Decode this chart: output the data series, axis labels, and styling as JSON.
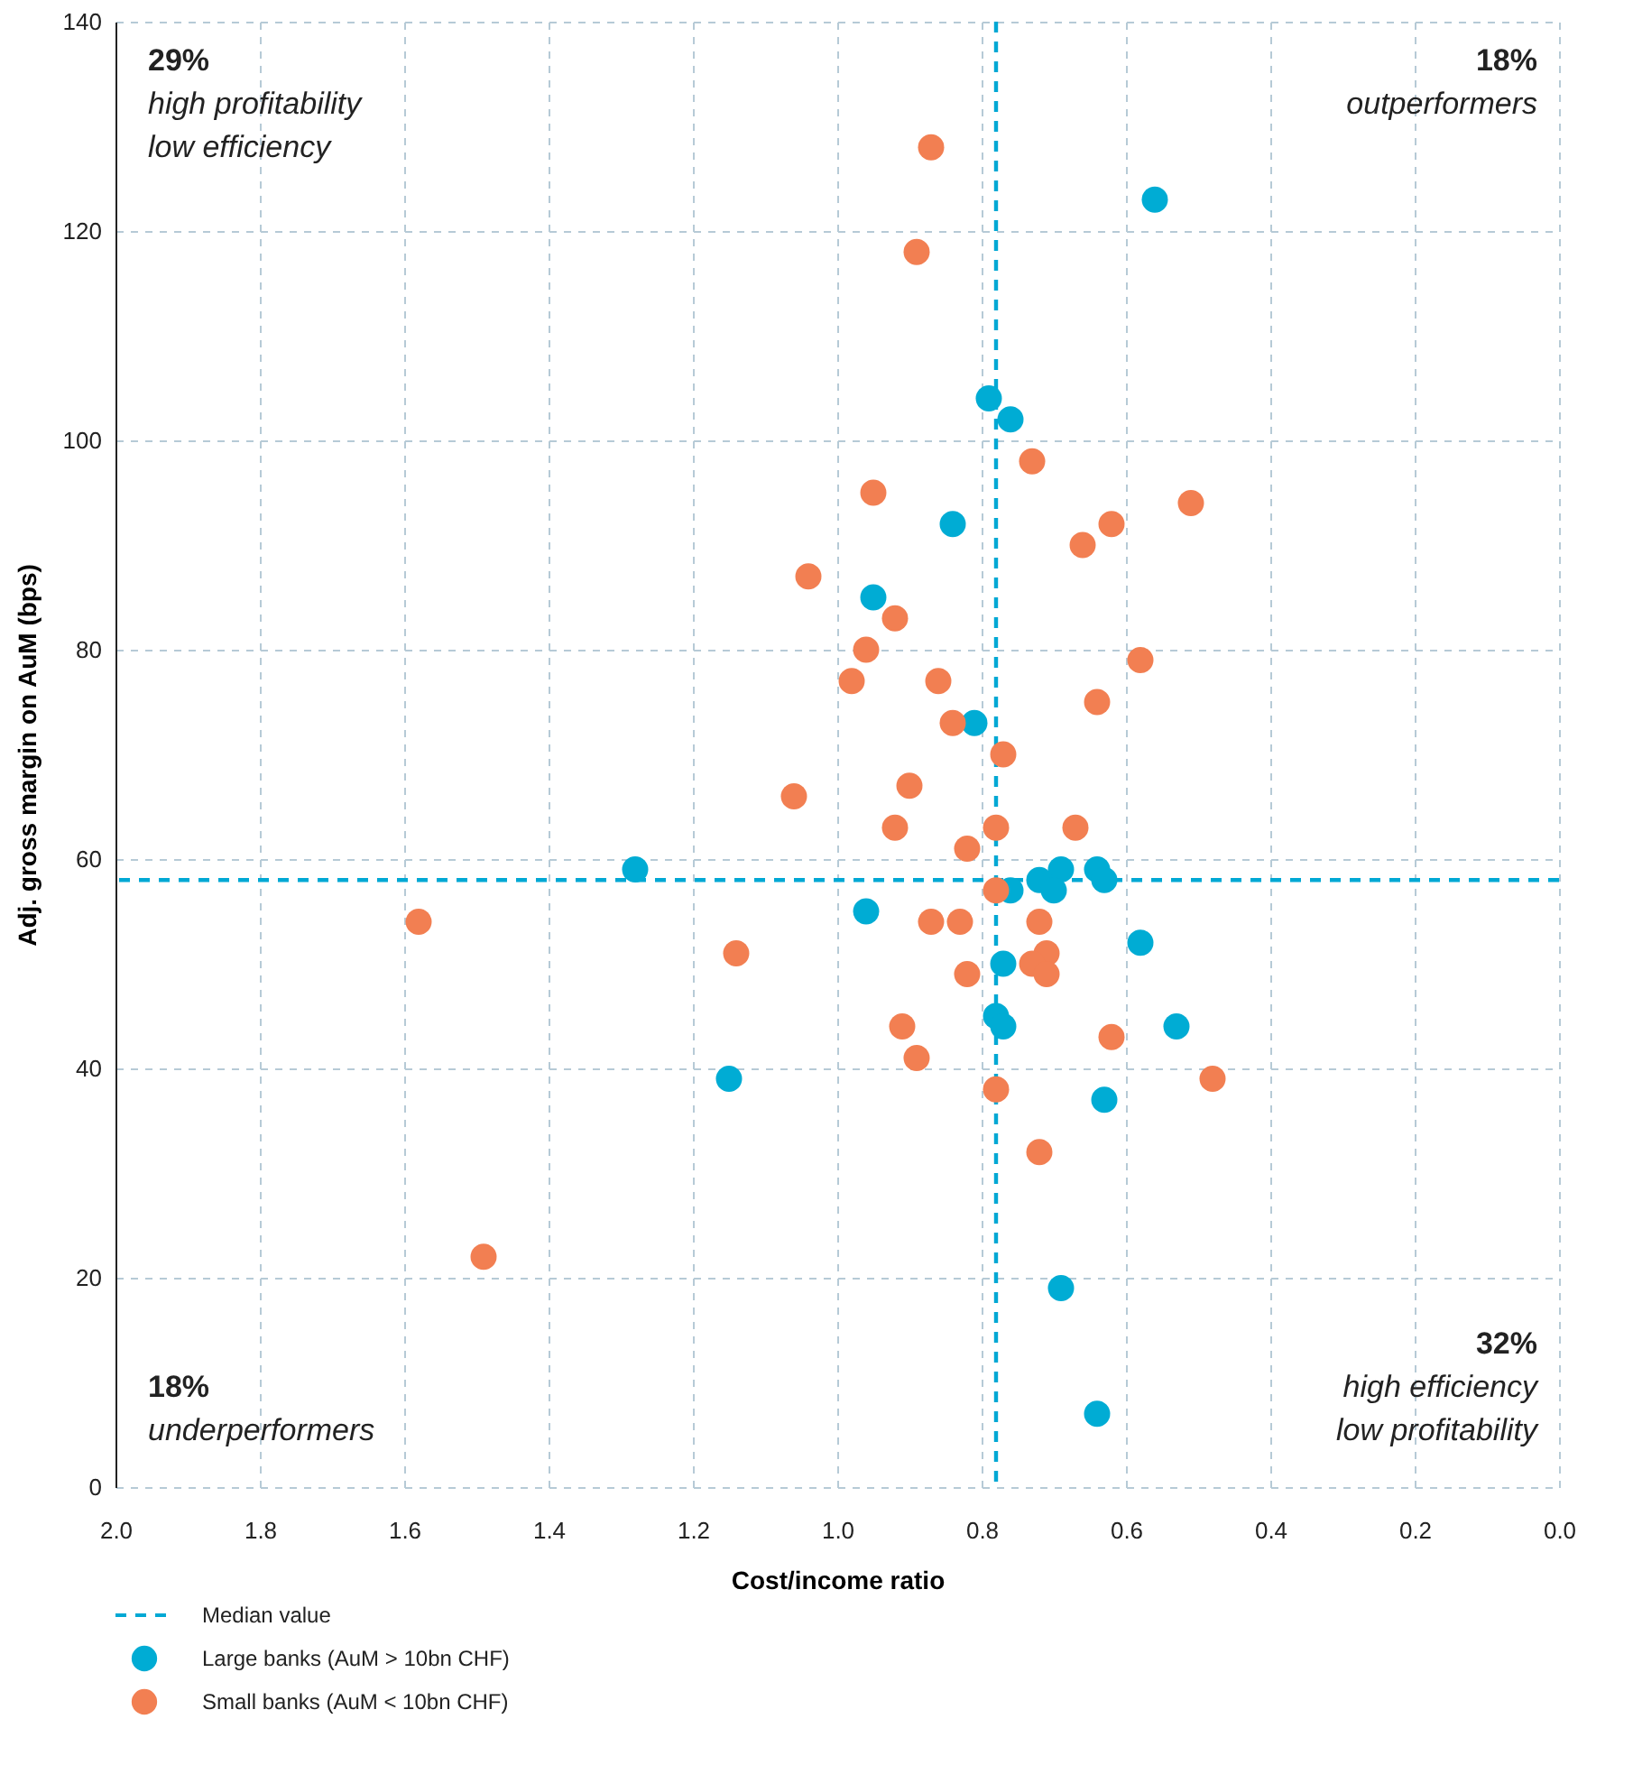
{
  "chart_data": {
    "type": "scatter",
    "xlabel": "Cost/income ratio",
    "ylabel": "Adj. gross margin on AuM (bps)",
    "xlim": [
      2.0,
      0.0
    ],
    "ylim": [
      0,
      140
    ],
    "xticks": [
      {
        "value": 2.0,
        "label": "2.0"
      },
      {
        "value": 1.8,
        "label": "1.8"
      },
      {
        "value": 1.6,
        "label": "1.6"
      },
      {
        "value": 1.4,
        "label": "1.4"
      },
      {
        "value": 1.2,
        "label": "1.2"
      },
      {
        "value": 1.0,
        "label": "1.0"
      },
      {
        "value": 0.8,
        "label": "0.8"
      },
      {
        "value": 0.6,
        "label": "0.6"
      },
      {
        "value": 0.4,
        "label": "0.4"
      },
      {
        "value": 0.2,
        "label": "0.2"
      },
      {
        "value": 0.0,
        "label": "0.0"
      }
    ],
    "yticks": [
      0,
      20,
      40,
      60,
      80,
      100,
      120,
      140
    ],
    "grid": true,
    "legend": "bottom",
    "marker": "circle",
    "series": [
      {
        "name": "Large banks (AuM > 10bn CHF)",
        "color": "#00acd4",
        "x": [
          0.56,
          0.79,
          0.76,
          0.84,
          0.95,
          0.81,
          0.69,
          0.64,
          0.72,
          0.63,
          0.7,
          0.76,
          0.96,
          0.58,
          0.77,
          0.78,
          0.77,
          0.53,
          1.15,
          0.63,
          0.69,
          0.64,
          1.28
        ],
        "values": [
          123,
          104,
          102,
          92,
          85,
          73,
          59,
          59,
          58,
          58,
          57,
          57,
          55,
          52,
          50,
          45,
          44,
          44,
          39,
          37,
          19,
          7,
          59
        ]
      },
      {
        "name": "Small banks (AuM < 10bn CHF)",
        "color": "#f27f52",
        "x": [
          0.87,
          0.89,
          0.73,
          0.95,
          0.51,
          0.62,
          0.66,
          1.04,
          0.92,
          0.96,
          0.58,
          0.98,
          0.86,
          0.64,
          0.84,
          0.77,
          1.06,
          0.9,
          0.92,
          0.78,
          0.67,
          0.82,
          0.78,
          0.87,
          0.83,
          0.72,
          1.14,
          0.71,
          0.73,
          0.71,
          0.82,
          0.91,
          0.62,
          0.89,
          0.48,
          0.78,
          0.72,
          1.58,
          1.49
        ],
        "values": [
          128,
          118,
          98,
          95,
          94,
          92,
          90,
          87,
          83,
          80,
          79,
          77,
          77,
          75,
          73,
          70,
          66,
          67,
          63,
          63,
          63,
          61,
          57,
          54,
          54,
          54,
          51,
          51,
          50,
          49,
          49,
          44,
          43,
          41,
          39,
          38,
          32,
          54,
          22
        ]
      }
    ],
    "ref_lines": [
      {
        "axis": "x",
        "value": 0.78,
        "label": "Median value",
        "color": "#00a8d4",
        "line_style": "dashed"
      },
      {
        "axis": "y",
        "value": 58,
        "label": null,
        "color": "#00a8d4",
        "line_style": "dashed"
      }
    ],
    "annotations": [
      "29%\nhigh profitability\nlow efficiency",
      "18%\noutperformers",
      "18%\nunderperformers",
      "32%\nhigh efficiency\nlow profitability"
    ]
  }
}
